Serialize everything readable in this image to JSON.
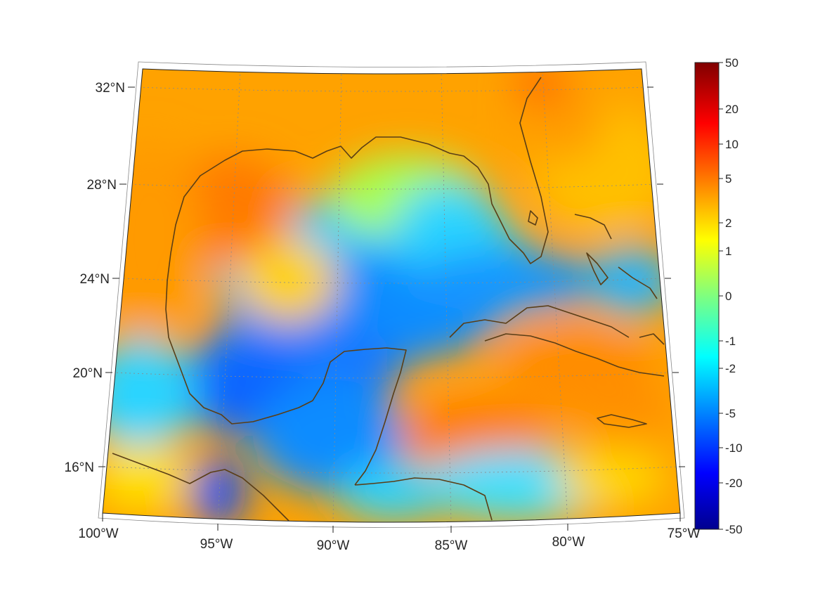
{
  "map": {
    "title": "",
    "lon_labels": [
      "100°W",
      "95°W",
      "90°W",
      "85°W",
      "80°W",
      "75°W"
    ],
    "lat_labels": [
      "32°N",
      "28°N",
      "24°N",
      "20°N",
      "16°N"
    ],
    "lon_range_deg_west": [
      100,
      75
    ],
    "lat_range_deg_north": [
      14,
      33
    ],
    "coastline_color": "#5a3e16",
    "graticule": "dotted"
  },
  "colorbar": {
    "colormap": "jet",
    "tick_labels": [
      "50",
      "20",
      "10",
      "5",
      "2",
      "1",
      "0",
      "-1",
      "-2",
      "-5",
      "-10",
      "-20",
      "-50"
    ],
    "min": -50,
    "max": 50
  }
}
